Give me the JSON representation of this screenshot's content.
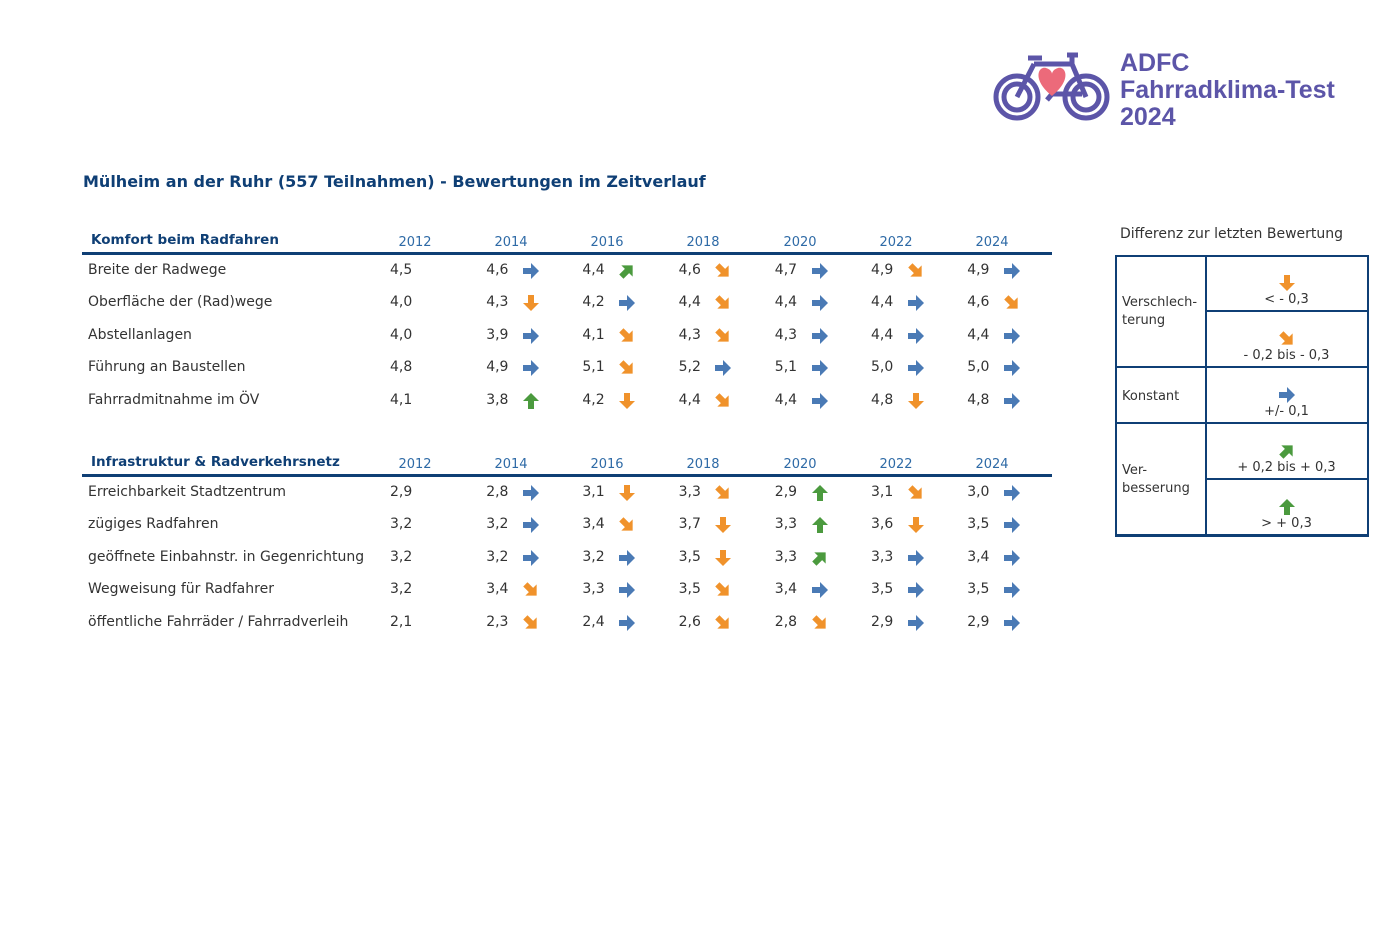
{
  "logo": {
    "line1": "ADFC",
    "line2": "Fahrradklima-Test",
    "line3": "2024"
  },
  "title": "Mülheim an der Ruhr (557 Teilnahmen) - Bewertungen im Zeitverlauf",
  "years": [
    "2012",
    "2014",
    "2016",
    "2018",
    "2020",
    "2022",
    "2024"
  ],
  "colors": {
    "r": "#4a7ab5",
    "d": "#f0922b",
    "dr": "#f0922b",
    "ur": "#4b9a3e",
    "u": "#4b9a3e"
  },
  "sections": [
    {
      "heading": "Komfort beim Radfahren",
      "rows": [
        {
          "label": "Breite der Radwege",
          "values": [
            "4,5",
            "4,6",
            "4,4",
            "4,6",
            "4,7",
            "4,9",
            "4,9"
          ],
          "trends": [
            "r",
            "ur",
            "dr",
            "r",
            "dr",
            "r"
          ]
        },
        {
          "label": "Oberfläche der (Rad)wege",
          "values": [
            "4,0",
            "4,3",
            "4,2",
            "4,4",
            "4,4",
            "4,4",
            "4,6"
          ],
          "trends": [
            "d",
            "r",
            "dr",
            "r",
            "r",
            "dr"
          ]
        },
        {
          "label": "Abstellanlagen",
          "values": [
            "4,0",
            "3,9",
            "4,1",
            "4,3",
            "4,3",
            "4,4",
            "4,4"
          ],
          "trends": [
            "r",
            "dr",
            "dr",
            "r",
            "r",
            "r"
          ]
        },
        {
          "label": "Führung an Baustellen",
          "values": [
            "4,8",
            "4,9",
            "5,1",
            "5,2",
            "5,1",
            "5,0",
            "5,0"
          ],
          "trends": [
            "r",
            "dr",
            "r",
            "r",
            "r",
            "r"
          ]
        },
        {
          "label": "Fahrradmitnahme im ÖV",
          "values": [
            "4,1",
            "3,8",
            "4,2",
            "4,4",
            "4,4",
            "4,8",
            "4,8"
          ],
          "trends": [
            "u",
            "d",
            "dr",
            "r",
            "d",
            "r"
          ]
        }
      ]
    },
    {
      "heading": "Infrastruktur & Radverkehrsnetz",
      "rows": [
        {
          "label": "Erreichbarkeit Stadtzentrum",
          "values": [
            "2,9",
            "2,8",
            "3,1",
            "3,3",
            "2,9",
            "3,1",
            "3,0"
          ],
          "trends": [
            "r",
            "d",
            "dr",
            "u",
            "dr",
            "r"
          ]
        },
        {
          "label": "zügiges Radfahren",
          "values": [
            "3,2",
            "3,2",
            "3,4",
            "3,7",
            "3,3",
            "3,6",
            "3,5"
          ],
          "trends": [
            "r",
            "dr",
            "d",
            "u",
            "d",
            "r"
          ]
        },
        {
          "label": "geöffnete Einbahnstr. in Gegenrichtung",
          "values": [
            "3,2",
            "3,2",
            "3,2",
            "3,5",
            "3,3",
            "3,3",
            "3,4"
          ],
          "trends": [
            "r",
            "r",
            "d",
            "ur",
            "r",
            "r"
          ]
        },
        {
          "label": "Wegweisung für Radfahrer",
          "values": [
            "3,2",
            "3,4",
            "3,3",
            "3,5",
            "3,4",
            "3,5",
            "3,5"
          ],
          "trends": [
            "dr",
            "r",
            "dr",
            "r",
            "r",
            "r"
          ]
        },
        {
          "label": "öffentliche Fahrräder / Fahrradverleih",
          "values": [
            "2,1",
            "2,3",
            "2,4",
            "2,6",
            "2,8",
            "2,9",
            "2,9"
          ],
          "trends": [
            "dr",
            "r",
            "dr",
            "dr",
            "r",
            "r"
          ]
        }
      ]
    }
  ],
  "legend": {
    "title": "Differenz zur letzten Bewertung",
    "groups": [
      "Verschlech-\nterung",
      "Konstant",
      "Ver-\nbesserung"
    ],
    "items": [
      {
        "trend": "d",
        "text": "< - 0,3"
      },
      {
        "trend": "dr",
        "text": "- 0,2 bis - 0,3"
      },
      {
        "trend": "r",
        "text": "+/- 0,1"
      },
      {
        "trend": "ur",
        "text": "+ 0,2 bis + 0,3"
      },
      {
        "trend": "u",
        "text": "> + 0,3"
      }
    ]
  }
}
